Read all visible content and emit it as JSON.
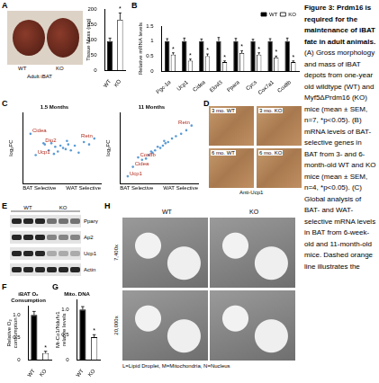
{
  "figure": {
    "caption_title": "Figure 3: Prdm16 is required for the maintenance of iBAT fate in adult animals.",
    "caption_text": "(A) Gross morphology and mass of iBAT depots from one-year old wildtype (WT) and Myf5ΔPrdm16 (KO) mice (mean ± SEM, n=7, *p<0.05). (B) mRNA levels of BAT-selective genes in BAT from 3- and 6-month-old WT and KO mice (mean ± SEM, n=4, *p<0.05). (C) Global analysis of BAT- and WAT-selective mRNA levels in BAT from 6-week-old and 11-month-old mice. Dashed orange line illustrates the",
    "photo_A": {
      "label": "A",
      "caption": "Adult iBAT",
      "groups": [
        "WT",
        "KO"
      ]
    },
    "D": {
      "label": "D",
      "images": [
        "3 mo. WT",
        "3 mo. KO",
        "6 mo. WT",
        "6 mo. KO"
      ],
      "caption": "Anti-Ucp1"
    },
    "E": {
      "label": "E",
      "groups": [
        "WT",
        "KO"
      ],
      "rows": [
        "Pparγ",
        "Ap2",
        "Ucp1",
        "Actin"
      ]
    },
    "H": {
      "label": "H",
      "columns": [
        "WT",
        "KO"
      ],
      "rows": [
        "7,400x",
        "20,000x"
      ],
      "key": "L=Lipid Droplet, M=Mitochondria, N=Nucleus"
    }
  },
  "chart_data": [
    {
      "type": "bar",
      "categories": [
        "WT",
        "KO"
      ],
      "values": [
        95,
        165
      ],
      "errors": [
        10,
        22
      ],
      "colors": [
        "#000000",
        "#ffffff"
      ],
      "ylabel": "Tissue Mass (mg)",
      "ylim": [
        0,
        200
      ],
      "yticks": [
        0,
        50,
        100,
        150,
        200
      ],
      "grid": false,
      "annotations": [
        {
          "category": "KO",
          "text": "*"
        }
      ]
    },
    {
      "panel": "B",
      "type": "bar",
      "categories": [
        "Pgc-1α",
        "Ucp1",
        "Cidea",
        "Elovl3",
        "Ppara",
        "Cycs",
        "Cox7a1",
        "Cox8b"
      ],
      "series": [
        {
          "name": "WT",
          "color": "#000000",
          "values": [
            1,
            1,
            1,
            1,
            1,
            1,
            1,
            1
          ],
          "errors": [
            0.08,
            0.1,
            0.07,
            0.12,
            0.09,
            0.06,
            0.08,
            0.1
          ]
        },
        {
          "name": "KO",
          "color": "#ffffff",
          "values": [
            0.55,
            0.35,
            0.5,
            0.3,
            0.6,
            0.55,
            0.45,
            0.3
          ],
          "errors": [
            0.06,
            0.05,
            0.07,
            0.04,
            0.08,
            0.06,
            0.05,
            0.04
          ]
        }
      ],
      "ylabel": "Relative mRNA levels",
      "ylim": [
        0,
        1.5
      ],
      "yticks": [
        0,
        0.5,
        1,
        1.5
      ],
      "grid": false,
      "legend": "top-right",
      "annotations": [
        {
          "series": "KO",
          "category": "Pgc-1α",
          "text": "*"
        },
        {
          "series": "KO",
          "category": "Ucp1",
          "text": "*"
        },
        {
          "series": "KO",
          "category": "Cidea",
          "text": "*"
        },
        {
          "series": "KO",
          "category": "Elovl3",
          "text": "*"
        },
        {
          "series": "KO",
          "category": "Ppara",
          "text": "*"
        },
        {
          "series": "KO",
          "category": "Cycs",
          "text": "*"
        },
        {
          "series": "KO",
          "category": "Cox7a1",
          "text": "*"
        },
        {
          "series": "KO",
          "category": "Cox8b",
          "text": "*"
        }
      ]
    },
    {
      "panel": "C",
      "type": "scatter",
      "title": "1.5 Months",
      "color": "#5b9bd5",
      "x": [
        -2.4,
        -2.0,
        -1.4,
        -1.3,
        -1.0,
        -0.8,
        -0.5,
        -0.3,
        -0.1,
        0.1,
        0.3,
        0.5,
        0.7,
        1.0,
        1.3,
        1.7,
        2.1,
        2.5,
        -0.6,
        0.4
      ],
      "values": [
        1.2,
        -0.6,
        0.4,
        0.3,
        -0.2,
        0.4,
        0.1,
        -0.3,
        0.2,
        0.0,
        -0.1,
        0.3,
        -0.2,
        0.2,
        -0.4,
        0.5,
        0.3,
        0.8,
        -0.5,
        0.6
      ],
      "point_labels": [
        "Cidea",
        "Ucp1",
        "Dio2",
        null,
        null,
        null,
        null,
        null,
        null,
        null,
        null,
        null,
        null,
        null,
        null,
        null,
        null,
        "Retn",
        null,
        null
      ],
      "ylabel": "log₂FC",
      "x_annotations": [
        "BAT Selective",
        "WAT Selective"
      ],
      "xlim": [
        -3,
        3
      ],
      "ylim": [
        -3,
        3
      ],
      "tick_labels": false,
      "grid": false
    },
    {
      "type": "scatter",
      "title": "11 Months",
      "color": "#5b9bd5",
      "x": [
        -2.4,
        -2.0,
        -1.6,
        -1.3,
        -1.0,
        -0.8,
        -0.5,
        -0.3,
        -0.1,
        0.1,
        0.3,
        0.5,
        0.7,
        1.0,
        1.3,
        1.7,
        2.1,
        2.5,
        -0.6,
        0.4
      ],
      "values": [
        -2.4,
        -1.6,
        -0.8,
        -1.0,
        -0.9,
        -0.6,
        -0.4,
        -0.2,
        0.1,
        0.0,
        0.2,
        0.4,
        0.5,
        0.8,
        1.0,
        1.2,
        1.5,
        1.9,
        -0.3,
        0.6
      ],
      "point_labels": [
        "Ucp1",
        "Cidea",
        "Cox8b",
        null,
        null,
        null,
        null,
        null,
        null,
        null,
        null,
        null,
        null,
        null,
        null,
        null,
        null,
        "Retn",
        null,
        null
      ],
      "ylabel": "log₂FC",
      "x_annotations": [
        "BAT Selective",
        "WAT Selective"
      ],
      "xlim": [
        -3,
        3
      ],
      "ylim": [
        -3,
        3
      ],
      "tick_labels": false,
      "grid": false
    },
    {
      "panel": "F",
      "type": "bar",
      "title": "iBAT O₂ Consumption",
      "categories": [
        "WT",
        "KO"
      ],
      "values": [
        1.0,
        0.15
      ],
      "errors": [
        0.08,
        0.04
      ],
      "colors": [
        "#000000",
        "#ffffff"
      ],
      "ylabel": "Relative O₂ consumption",
      "ylim": [
        0,
        1.2
      ],
      "yticks": [
        0,
        0.5,
        {
          "value": 1,
          "label": "1.0"
        }
      ],
      "grid": false,
      "annotations": [
        {
          "category": "KO",
          "text": "*"
        }
      ]
    },
    {
      "panel": "G",
      "type": "bar",
      "title": "Mito. DNA",
      "categories": [
        "WT",
        "KO"
      ],
      "values": [
        1.0,
        0.45
      ],
      "errors": [
        0.06,
        0.05
      ],
      "colors": [
        "#000000",
        "#ffffff"
      ],
      "ylabel": "Mt-Co1/Ndufv1 relative levels",
      "ylim": [
        0,
        1.2
      ],
      "yticks": [
        0,
        0.5,
        {
          "value": 1,
          "label": "1.0"
        }
      ],
      "grid": false,
      "annotations": [
        {
          "category": "KO",
          "text": "*"
        }
      ]
    }
  ]
}
